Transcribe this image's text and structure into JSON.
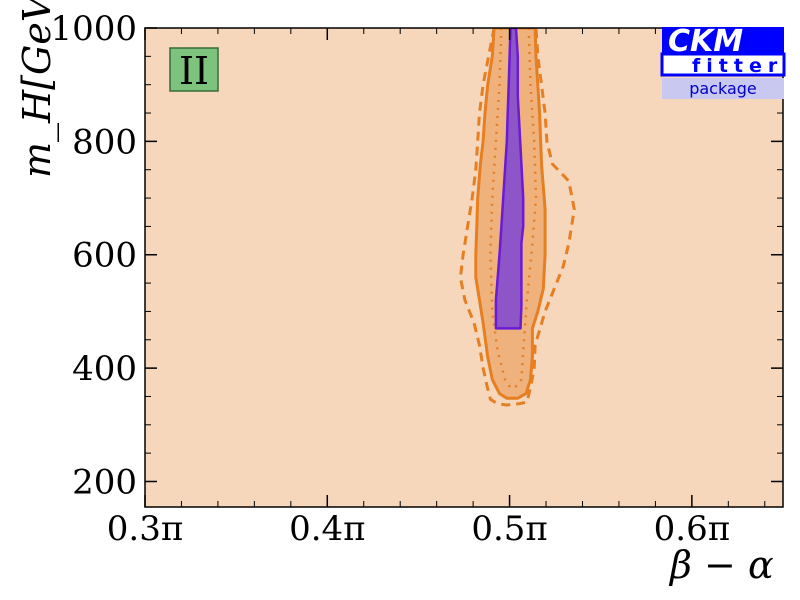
{
  "chart_data": {
    "type": "contour",
    "title": "",
    "xlabel": "β − α",
    "ylabel": "m_H[GeV]",
    "xlim": [
      0.3,
      0.65
    ],
    "ylim": [
      155,
      1000
    ],
    "x_ticks": [
      {
        "value": 0.3,
        "label": "0.3π"
      },
      {
        "value": 0.4,
        "label": "0.4π"
      },
      {
        "value": 0.5,
        "label": "0.5π"
      },
      {
        "value": 0.6,
        "label": "0.6π"
      }
    ],
    "y_ticks": [
      {
        "value": 200,
        "label": "200"
      },
      {
        "value": 400,
        "label": "400"
      },
      {
        "value": 600,
        "label": "600"
      },
      {
        "value": 800,
        "label": "800"
      },
      {
        "value": 1000,
        "label": "1000"
      }
    ],
    "badge": "II",
    "logo": {
      "line1": "CKM",
      "line2": "fitter",
      "line3": "package"
    },
    "colors": {
      "outer_fill": "#f0b27d",
      "outer_line": "#e67e22",
      "inner_fill": "#8e55c8",
      "inner_line": "#6a1bd6",
      "badge_fill": "#7dc27d",
      "logo_blue": "#0000ff",
      "logo_light": "#c8c8f0"
    },
    "regions": [
      {
        "name": "outer-solid",
        "points": [
          [
            0.4915,
            1000
          ],
          [
            0.4905,
            950
          ],
          [
            0.488,
            900
          ],
          [
            0.4865,
            850
          ],
          [
            0.4855,
            800
          ],
          [
            0.484,
            760
          ],
          [
            0.4825,
            700
          ],
          [
            0.482,
            650
          ],
          [
            0.4815,
            600
          ],
          [
            0.4815,
            560
          ],
          [
            0.4835,
            520
          ],
          [
            0.4855,
            480
          ],
          [
            0.488,
            420
          ],
          [
            0.4905,
            380
          ],
          [
            0.4945,
            355
          ],
          [
            0.4985,
            347
          ],
          [
            0.5045,
            347
          ],
          [
            0.509,
            355
          ],
          [
            0.5115,
            380
          ],
          [
            0.5125,
            420
          ],
          [
            0.5125,
            470
          ],
          [
            0.5155,
            500
          ],
          [
            0.5185,
            540
          ],
          [
            0.5195,
            600
          ],
          [
            0.5195,
            680
          ],
          [
            0.5175,
            760
          ],
          [
            0.5165,
            850
          ],
          [
            0.5145,
            950
          ],
          [
            0.514,
            1000
          ]
        ]
      },
      {
        "name": "outer-dashed",
        "points": [
          [
            0.4915,
            1000
          ],
          [
            0.4885,
            950
          ],
          [
            0.4855,
            900
          ],
          [
            0.4835,
            850
          ],
          [
            0.4825,
            800
          ],
          [
            0.4815,
            750
          ],
          [
            0.4795,
            700
          ],
          [
            0.477,
            650
          ],
          [
            0.4745,
            600
          ],
          [
            0.473,
            560
          ],
          [
            0.4755,
            520
          ],
          [
            0.4805,
            480
          ],
          [
            0.4835,
            440
          ],
          [
            0.4855,
            400
          ],
          [
            0.4875,
            370
          ],
          [
            0.4895,
            345
          ],
          [
            0.4935,
            337
          ],
          [
            0.4985,
            335
          ],
          [
            0.505,
            337
          ],
          [
            0.5095,
            340
          ],
          [
            0.5115,
            365
          ],
          [
            0.5135,
            400
          ],
          [
            0.514,
            440
          ],
          [
            0.5195,
            500
          ],
          [
            0.5245,
            540
          ],
          [
            0.5295,
            580
          ],
          [
            0.5325,
            620
          ],
          [
            0.5355,
            680
          ],
          [
            0.5325,
            730
          ],
          [
            0.5235,
            760
          ],
          [
            0.5205,
            800
          ],
          [
            0.5195,
            850
          ],
          [
            0.5175,
            900
          ],
          [
            0.5155,
            950
          ],
          [
            0.5145,
            1000
          ]
        ]
      },
      {
        "name": "outer-dotted",
        "points": [
          [
            0.4955,
            1000
          ],
          [
            0.4945,
            900
          ],
          [
            0.4925,
            800
          ],
          [
            0.4905,
            700
          ],
          [
            0.4895,
            600
          ],
          [
            0.4905,
            500
          ],
          [
            0.4935,
            430
          ],
          [
            0.4975,
            380
          ],
          [
            0.5005,
            365
          ],
          [
            0.5035,
            368
          ],
          [
            0.5065,
            380
          ],
          [
            0.5075,
            430
          ],
          [
            0.5095,
            520
          ],
          [
            0.5125,
            620
          ],
          [
            0.5145,
            700
          ],
          [
            0.5135,
            800
          ],
          [
            0.5115,
            900
          ],
          [
            0.5105,
            1000
          ]
        ]
      },
      {
        "name": "inner",
        "points": [
          [
            0.5005,
            1000
          ],
          [
            0.5,
            950
          ],
          [
            0.4995,
            900
          ],
          [
            0.499,
            850
          ],
          [
            0.4985,
            800
          ],
          [
            0.4975,
            750
          ],
          [
            0.4965,
            700
          ],
          [
            0.4955,
            650
          ],
          [
            0.4945,
            600
          ],
          [
            0.4935,
            560
          ],
          [
            0.4925,
            520
          ],
          [
            0.4925,
            470
          ],
          [
            0.506,
            470
          ],
          [
            0.5065,
            510
          ],
          [
            0.5065,
            570
          ],
          [
            0.5065,
            620
          ],
          [
            0.5075,
            650
          ],
          [
            0.5075,
            700
          ],
          [
            0.5065,
            760
          ],
          [
            0.5055,
            820
          ],
          [
            0.5045,
            880
          ],
          [
            0.5045,
            950
          ],
          [
            0.5035,
            1000
          ]
        ]
      }
    ]
  }
}
